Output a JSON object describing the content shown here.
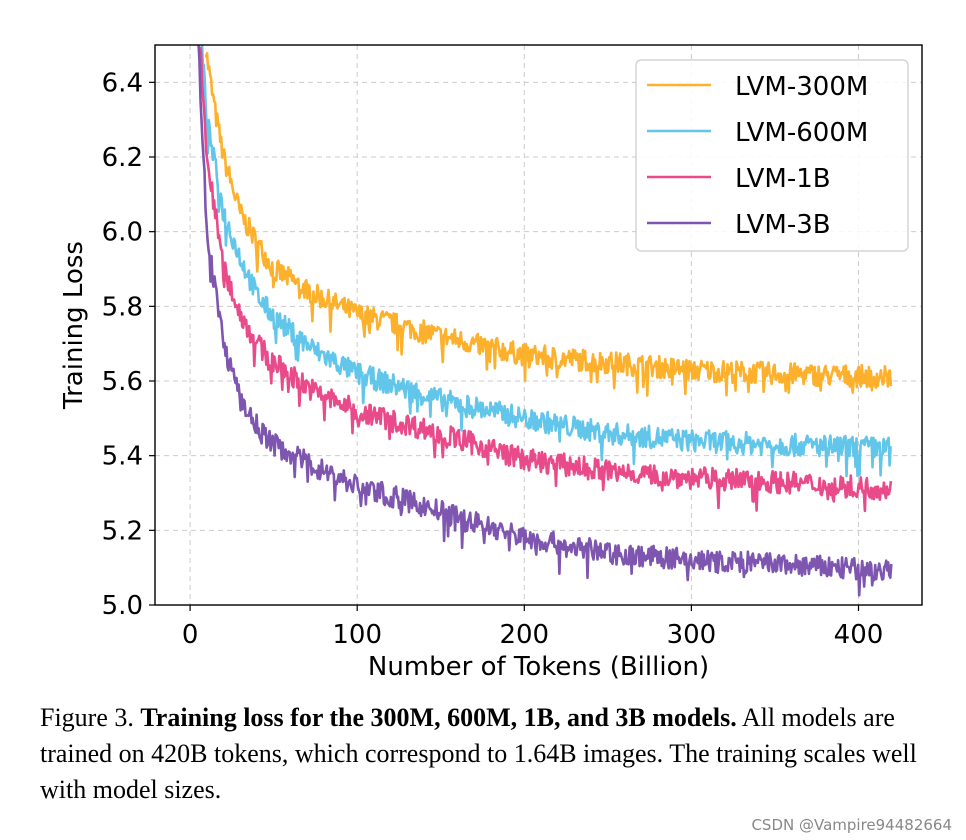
{
  "chart_data": {
    "type": "line",
    "xlabel": "Number of Tokens (Billion)",
    "ylabel": "Training Loss",
    "xlim": [
      -21,
      438
    ],
    "ylim": [
      5.0,
      6.5
    ],
    "xticks": [
      0,
      100,
      200,
      300,
      400
    ],
    "yticks": [
      5.0,
      5.2,
      5.4,
      5.6,
      5.8,
      6.0,
      6.2,
      6.4
    ],
    "grid": true,
    "legend_position": "top-right",
    "series": [
      {
        "name": "LVM-300M",
        "color": "#FDB02C",
        "x": [
          9,
          15,
          20,
          30,
          40,
          50,
          75,
          100,
          150,
          200,
          250,
          300,
          350,
          420
        ],
        "y": [
          6.5,
          6.32,
          6.2,
          6.05,
          5.97,
          5.9,
          5.83,
          5.78,
          5.72,
          5.67,
          5.65,
          5.63,
          5.62,
          5.61
        ]
      },
      {
        "name": "LVM-600M",
        "color": "#62C6EA",
        "x": [
          7,
          10,
          20,
          30,
          40,
          50,
          75,
          100,
          150,
          200,
          250,
          300,
          350,
          420
        ],
        "y": [
          6.5,
          6.3,
          6.05,
          5.93,
          5.83,
          5.77,
          5.68,
          5.62,
          5.55,
          5.5,
          5.46,
          5.44,
          5.43,
          5.42
        ]
      },
      {
        "name": "LVM-1B",
        "color": "#E84A8A",
        "x": [
          6,
          10,
          20,
          30,
          40,
          50,
          75,
          100,
          150,
          200,
          250,
          300,
          350,
          420
        ],
        "y": [
          6.5,
          6.2,
          5.9,
          5.78,
          5.7,
          5.65,
          5.57,
          5.52,
          5.46,
          5.39,
          5.36,
          5.34,
          5.33,
          5.31
        ]
      },
      {
        "name": "LVM-3B",
        "color": "#7E56B0",
        "x": [
          5,
          10,
          20,
          30,
          40,
          50,
          75,
          100,
          150,
          200,
          250,
          300,
          350,
          420
        ],
        "y": [
          6.5,
          6.0,
          5.7,
          5.55,
          5.48,
          5.43,
          5.37,
          5.32,
          5.25,
          5.18,
          5.14,
          5.12,
          5.11,
          5.09
        ]
      }
    ]
  },
  "caption": {
    "label": "Figure 3.",
    "title": "Training loss for the 300M, 600M, 1B, and 3B models.",
    "text": "All models are trained on 420B tokens, which correspond to 1.64B images. The training scales well with model sizes."
  },
  "watermark": "CSDN @Vampire94482664"
}
